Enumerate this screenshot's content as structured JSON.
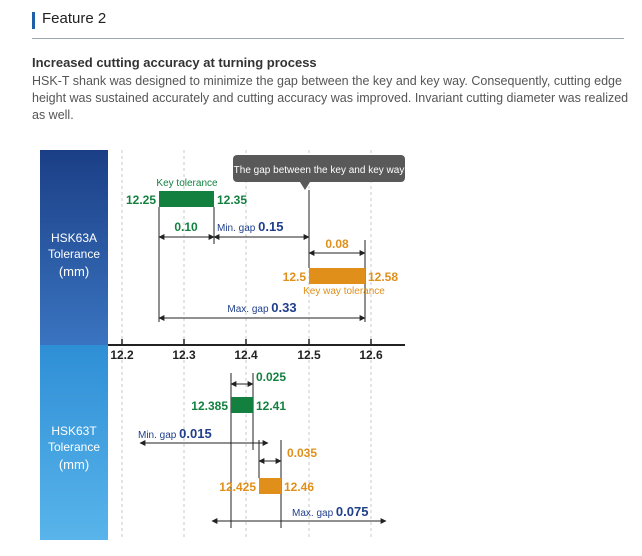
{
  "header": {
    "title": "Feature 2"
  },
  "section": {
    "title": "Increased cutting accuracy at turning process",
    "description": "HSK-T shank was designed to minimize the gap between the key and key way. Consequently, cutting edge height was sustained accurately and cutting accuracy was improved. Invariant cutting diameter was realized as well."
  },
  "colors": {
    "key": "#138040",
    "keyway": "#e0901a",
    "gap": "#1f3f8c",
    "top_band": "#2a5aa6",
    "bottom_band": "#2b8fd1"
  },
  "diagram": {
    "callout": "The gap between the key and key way",
    "axis_ticks": [
      "12.2",
      "12.3",
      "12.4",
      "12.5",
      "12.6"
    ],
    "hsk63a": {
      "label_line1": "HSK63A",
      "label_line2": "Tolerance",
      "label_unit": "(mm)",
      "key_label": "Key tolerance",
      "key_min": "12.25",
      "key_max": "12.35",
      "key_width": "0.10",
      "min_gap_label": "Min. gap",
      "min_gap": "0.15",
      "keyway_width": "0.08",
      "keyway_min": "12.5",
      "keyway_max": "12.58",
      "keyway_label": "Key way tolerance",
      "max_gap_label": "Max. gap",
      "max_gap": "0.33"
    },
    "hsk63t": {
      "label_line1": "HSK63T",
      "label_line2": "Tolerance",
      "label_unit": "(mm)",
      "key_width": "0.025",
      "key_min": "12.385",
      "key_max": "12.41",
      "min_gap_label": "Min. gap",
      "min_gap": "0.015",
      "keyway_width": "0.035",
      "keyway_min": "12.425",
      "keyway_max": "12.46",
      "max_gap_label": "Max. gap",
      "max_gap": "0.075"
    }
  }
}
